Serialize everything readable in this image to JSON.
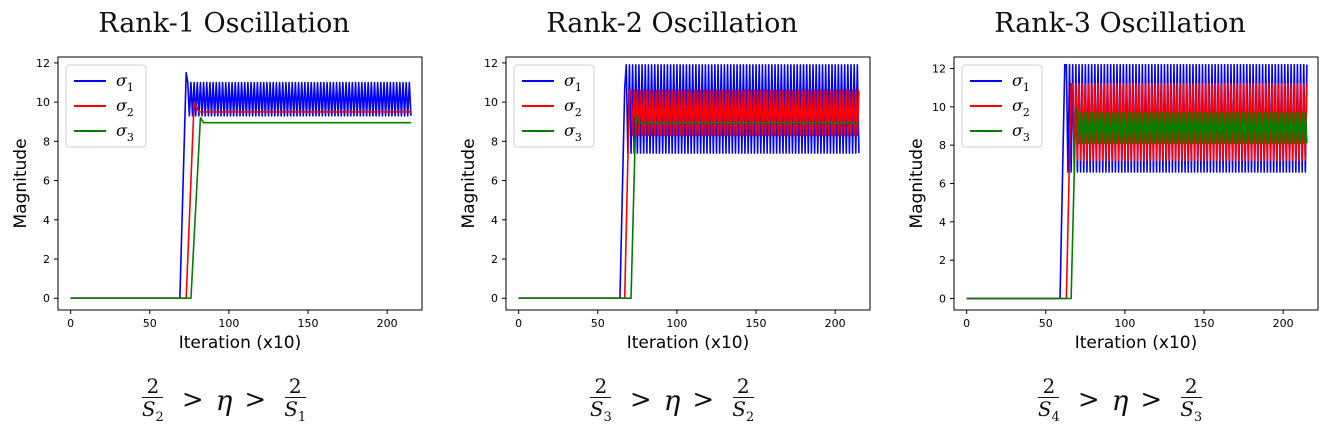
{
  "chart_data": [
    {
      "type": "line",
      "title": "Rank-1 Oscillation",
      "xlabel": "Iteration (x10)",
      "ylabel": "Magnitude",
      "xlim": [
        -8,
        222
      ],
      "ylim": [
        -0.6,
        12.3
      ],
      "xticks": [
        0,
        50,
        100,
        150,
        200
      ],
      "yticks": [
        0,
        2,
        4,
        6,
        8,
        10,
        12
      ],
      "legend_position": "top-left",
      "grid": false,
      "condition": {
        "num_left": "2",
        "den_left": "S",
        "den_left_sub": "2",
        "eta": "η",
        "num_right": "2",
        "den_right": "S",
        "den_right_sub": "1"
      },
      "series": [
        {
          "name": "σ1",
          "color": "#0000ff",
          "rise_start": 69,
          "rise_end": 73,
          "peak": 11.5,
          "osc_low": 9.3,
          "osc_high": 11.0,
          "steady": null,
          "end": 215,
          "settle": 1
        },
        {
          "name": "σ2",
          "color": "#ff0000",
          "rise_start": 73,
          "rise_end": 78,
          "peak": 10.0,
          "osc_low": null,
          "osc_high": null,
          "steady": 9.5,
          "end": 215,
          "settle": 3
        },
        {
          "name": "σ3",
          "color": "#008000",
          "rise_start": 76,
          "rise_end": 82,
          "peak": 9.2,
          "osc_low": null,
          "osc_high": null,
          "steady": 8.95,
          "end": 215,
          "settle": 2
        }
      ]
    },
    {
      "type": "line",
      "title": "Rank-2 Oscillation",
      "xlabel": "Iteration (x10)",
      "ylabel": "Magnitude",
      "xlim": [
        -8,
        222
      ],
      "ylim": [
        -0.6,
        12.3
      ],
      "xticks": [
        0,
        50,
        100,
        150,
        200
      ],
      "yticks": [
        0,
        2,
        4,
        6,
        8,
        10,
        12
      ],
      "legend_position": "top-left",
      "grid": false,
      "condition": {
        "num_left": "2",
        "den_left": "S",
        "den_left_sub": "3",
        "eta": "η",
        "num_right": "2",
        "den_right": "S",
        "den_right_sub": "2"
      },
      "series": [
        {
          "name": "σ1",
          "color": "#0000ff",
          "rise_start": 64,
          "rise_end": 67,
          "peak": 10.7,
          "osc_low": 7.4,
          "osc_high": 11.9,
          "steady": null,
          "end": 215,
          "settle": 1
        },
        {
          "name": "σ2",
          "color": "#ff0000",
          "rise_start": 67,
          "rise_end": 70,
          "peak": 10.6,
          "osc_low": 8.3,
          "osc_high": 10.6,
          "steady": null,
          "end": 215,
          "settle": 1
        },
        {
          "name": "σ3",
          "color": "#008000",
          "rise_start": 71,
          "rise_end": 74,
          "peak": 9.3,
          "osc_low": null,
          "osc_high": null,
          "steady": 8.95,
          "end": 215,
          "settle": 2
        }
      ]
    },
    {
      "type": "line",
      "title": "Rank-3 Oscillation",
      "xlabel": "Iteration (x10)",
      "ylabel": "Magnitude",
      "xlim": [
        -8,
        222
      ],
      "ylim": [
        -0.6,
        12.6
      ],
      "xticks": [
        0,
        50,
        100,
        150,
        200
      ],
      "yticks": [
        0,
        2,
        4,
        6,
        8,
        10,
        12
      ],
      "legend_position": "top-left",
      "grid": false,
      "condition": {
        "num_left": "2",
        "den_left": "S",
        "den_left_sub": "4",
        "eta": "η",
        "num_right": "2",
        "den_right": "S",
        "den_right_sub": "3"
      },
      "series": [
        {
          "name": "σ1",
          "color": "#0000ff",
          "rise_start": 59,
          "rise_end": 62,
          "peak": 12.2,
          "osc_low": 6.6,
          "osc_high": 12.2,
          "steady": null,
          "end": 215,
          "settle": 1
        },
        {
          "name": "σ2",
          "color": "#ff0000",
          "rise_start": 63,
          "rise_end": 66,
          "peak": 11.2,
          "osc_low": 7.2,
          "osc_high": 11.2,
          "steady": null,
          "end": 215,
          "settle": 1
        },
        {
          "name": "σ3",
          "color": "#008000",
          "rise_start": 66,
          "rise_end": 69,
          "peak": 9.9,
          "osc_low": 8.1,
          "osc_high": 9.7,
          "steady": null,
          "end": 215,
          "settle": 1
        }
      ]
    }
  ]
}
